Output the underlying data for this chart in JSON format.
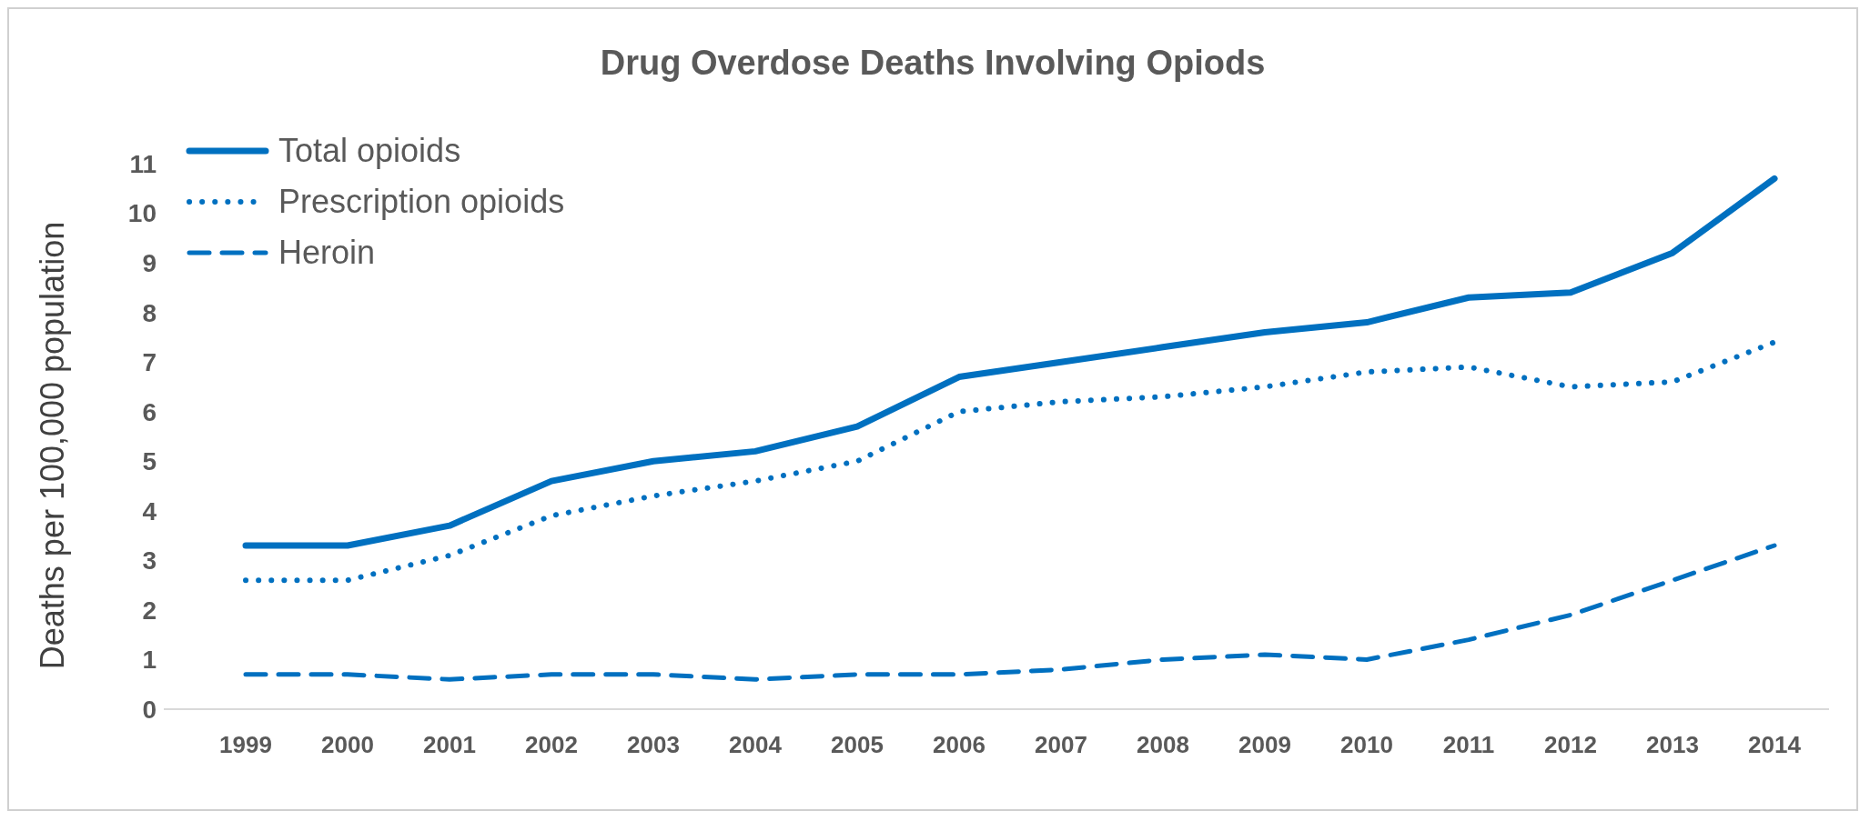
{
  "chart_data": {
    "type": "line",
    "title": "Drug Overdose Deaths Involving Opiods",
    "ylabel": "Deaths per 100,000 population",
    "categories": [
      "1999",
      "2000",
      "2001",
      "2002",
      "2003",
      "2004",
      "2005",
      "2006",
      "2007",
      "2008",
      "2009",
      "2010",
      "2011",
      "2012",
      "2013",
      "2014"
    ],
    "series": [
      {
        "name": "Total opioids",
        "color": "#0070c0",
        "line_style": "solid",
        "values": [
          3.3,
          3.3,
          3.7,
          4.6,
          5.0,
          5.2,
          5.7,
          6.7,
          7.0,
          7.3,
          7.6,
          7.8,
          8.3,
          8.4,
          9.2,
          10.7
        ]
      },
      {
        "name": "Prescription opioids",
        "color": "#0070c0",
        "line_style": "dotted",
        "values": [
          2.6,
          2.6,
          3.1,
          3.9,
          4.3,
          4.6,
          5.0,
          6.0,
          6.2,
          6.3,
          6.5,
          6.8,
          6.9,
          6.5,
          6.6,
          7.4
        ]
      },
      {
        "name": "Heroin",
        "color": "#0070c0",
        "line_style": "dashed",
        "values": [
          0.7,
          0.7,
          0.6,
          0.7,
          0.7,
          0.6,
          0.7,
          0.7,
          0.8,
          1.0,
          1.1,
          1.0,
          1.4,
          1.9,
          2.6,
          3.3
        ]
      }
    ],
    "ylim": [
      0,
      11
    ],
    "yticks": [
      0,
      1,
      2,
      3,
      4,
      5,
      6,
      7,
      8,
      9,
      10,
      11
    ],
    "grid": false,
    "legend": "top left",
    "marker": "none"
  }
}
